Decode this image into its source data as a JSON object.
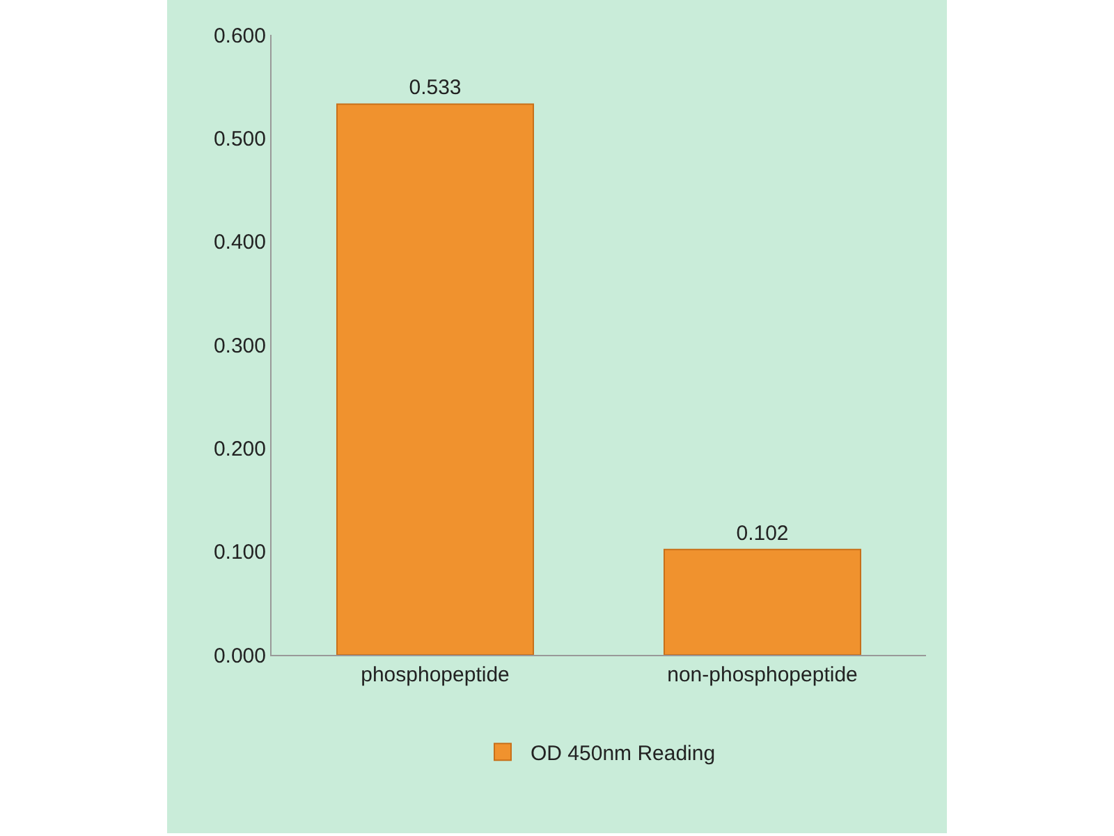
{
  "chart_data": {
    "type": "bar",
    "categories": [
      "phosphopeptide",
      "non-phosphopeptide"
    ],
    "series": [
      {
        "name": "OD 450nm Reading",
        "color": "#f0922e",
        "values": [
          0.533,
          0.102
        ]
      }
    ],
    "ylim": [
      0,
      0.6
    ],
    "yticks": [
      {
        "value": 0,
        "label": "0.000"
      },
      {
        "value": 0.1,
        "label": "0.100"
      },
      {
        "value": 0.2,
        "label": "0.200"
      },
      {
        "value": 0.3,
        "label": "0.300"
      },
      {
        "value": 0.4,
        "label": "0.400"
      },
      {
        "value": 0.5,
        "label": "0.500"
      },
      {
        "value": 0.6,
        "label": "0.600"
      }
    ],
    "data_labels": true,
    "grid": false,
    "legend": "bottom"
  }
}
